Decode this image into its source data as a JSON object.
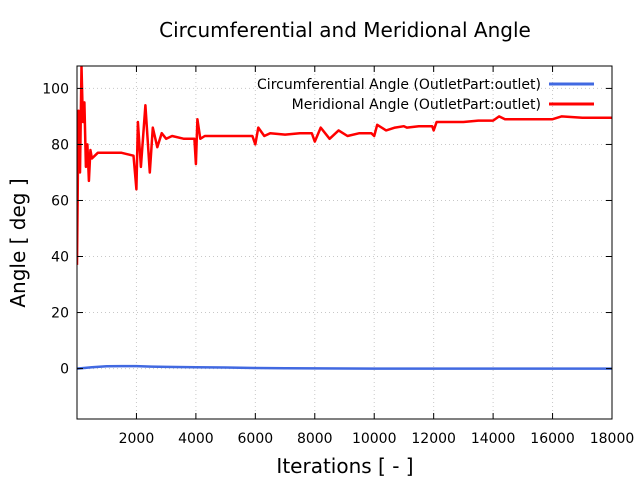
{
  "chart_data": {
    "type": "line",
    "title": "Circumferential and Meridional Angle",
    "xlabel": "Iterations [ - ]",
    "ylabel": "Angle [ deg ]",
    "xlim": [
      0,
      18000
    ],
    "ylim": [
      -18,
      108
    ],
    "grid": true,
    "legend_position": "top-right",
    "x_ticks": [
      2000,
      4000,
      6000,
      8000,
      10000,
      12000,
      14000,
      16000,
      18000
    ],
    "x_tick_labels": [
      "2000",
      "4000",
      "6000",
      "8000",
      "10000",
      "12000",
      "14000",
      "16000",
      "18000"
    ],
    "y_ticks": [
      0,
      20,
      40,
      60,
      80,
      100
    ],
    "y_tick_labels": [
      "0",
      "20",
      "40",
      "60",
      "80",
      "100"
    ],
    "series": [
      {
        "name": "Circumferential Angle (OutletPart:outlet)",
        "color": "#4169e1",
        "x": [
          0,
          500,
          1000,
          1500,
          2000,
          2500,
          3000,
          4000,
          5000,
          6000,
          7000,
          8000,
          10000,
          12000,
          14000,
          16000,
          18000
        ],
        "y": [
          0,
          0.5,
          0.8,
          0.9,
          0.9,
          0.7,
          0.6,
          0.5,
          0.4,
          0.2,
          0.1,
          0.05,
          0.0,
          0.0,
          0.0,
          0.0,
          0.0
        ]
      },
      {
        "name": "Meridional Angle (OutletPart:outlet)",
        "color": "#ff0000",
        "x": [
          0,
          50,
          100,
          150,
          200,
          250,
          300,
          350,
          400,
          450,
          500,
          600,
          700,
          800,
          1000,
          1500,
          1900,
          2000,
          2050,
          2150,
          2300,
          2450,
          2550,
          2700,
          2850,
          3000,
          3200,
          3600,
          3950,
          4000,
          4050,
          4150,
          4300,
          4500,
          5000,
          5500,
          5900,
          6000,
          6100,
          6300,
          6500,
          7000,
          7500,
          7900,
          8000,
          8200,
          8500,
          8800,
          9100,
          9500,
          9900,
          10000,
          10100,
          10400,
          10700,
          11000,
          11100,
          11500,
          11950,
          12000,
          12100,
          12500,
          12950,
          13000,
          13500,
          14000,
          14200,
          14400,
          15000,
          16000,
          16300,
          17000,
          18000
        ],
        "y": [
          37,
          92,
          70,
          108,
          88,
          95,
          72,
          80,
          67,
          78,
          75,
          76,
          77,
          77,
          77,
          77,
          76,
          64,
          88,
          72,
          94,
          70,
          86,
          79,
          84,
          82,
          83,
          82,
          82,
          73,
          89,
          82,
          83,
          83,
          83,
          83,
          83,
          80,
          86,
          83,
          84,
          83.5,
          84,
          84,
          81,
          86,
          82,
          85,
          83,
          84,
          84,
          83,
          87,
          85,
          86,
          86.5,
          86,
          86.5,
          86.5,
          85,
          88,
          88,
          88,
          88,
          88.5,
          88.5,
          90,
          89,
          89,
          89,
          90,
          89.5,
          89.5
        ]
      }
    ]
  }
}
